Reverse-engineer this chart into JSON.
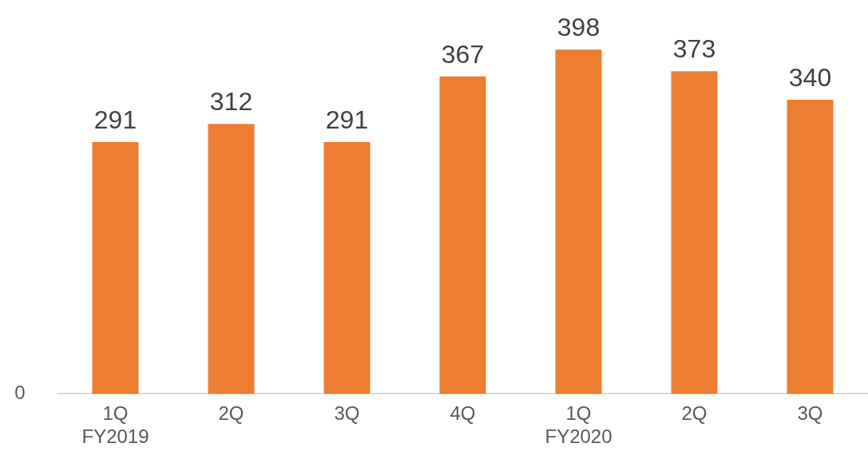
{
  "chart_data": {
    "type": "bar",
    "categories": [
      "1Q\nFY2019",
      "2Q",
      "3Q",
      "4Q",
      "1Q\nFY2020",
      "2Q",
      "3Q"
    ],
    "values": [
      291,
      312,
      291,
      367,
      398,
      373,
      340
    ],
    "color": "#ed7d31",
    "annotations": [
      "0"
    ],
    "data_labels": true,
    "grid": false,
    "legend": false
  }
}
